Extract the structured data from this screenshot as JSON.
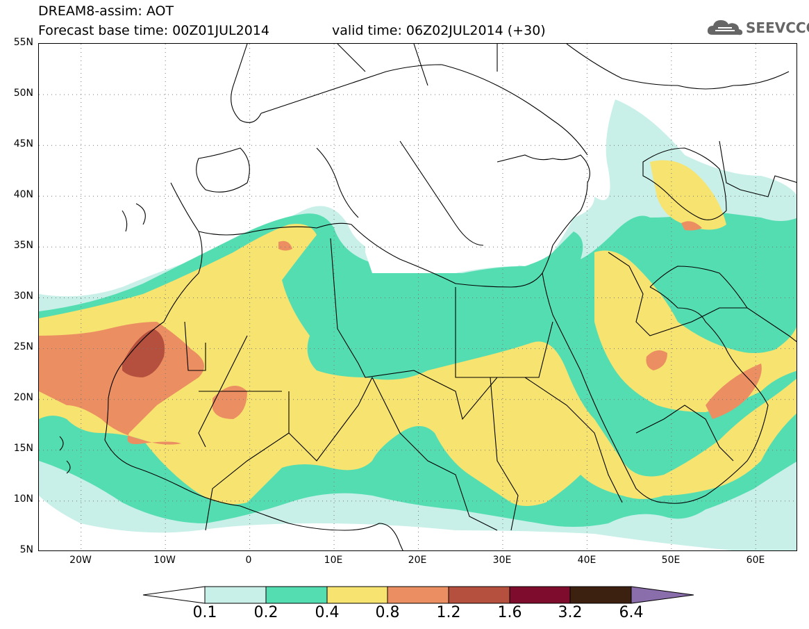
{
  "header": {
    "title": "DREAM8-assim: AOT",
    "forecast_line": "Forecast base time: 00Z01JUL2014",
    "valid_line": "valid time: 06Z02JUL2014 (+30)"
  },
  "logo": {
    "text": "SEEVCCC",
    "icon": "cloud-icon"
  },
  "map": {
    "lat_labels": [
      "55N",
      "50N",
      "45N",
      "40N",
      "35N",
      "30N",
      "25N",
      "20N",
      "15N",
      "10N",
      "5N"
    ],
    "lon_labels": [
      "20W",
      "10W",
      "0",
      "10E",
      "20E",
      "30E",
      "40E",
      "50E",
      "60E"
    ],
    "lat_range": [
      5,
      55
    ],
    "lon_range": [
      -25,
      65
    ],
    "gridlines": "dotted"
  },
  "colorbar": {
    "labels": [
      "0.1",
      "0.2",
      "0.4",
      "0.8",
      "1.2",
      "1.6",
      "3.2",
      "6.4"
    ],
    "colors": [
      "#ffffff",
      "#c8f0e8",
      "#55ddb2",
      "#f7e36f",
      "#eb8f63",
      "#b5503e",
      "#7e0c2c",
      "#3c2010",
      "#8a6eab"
    ]
  }
}
